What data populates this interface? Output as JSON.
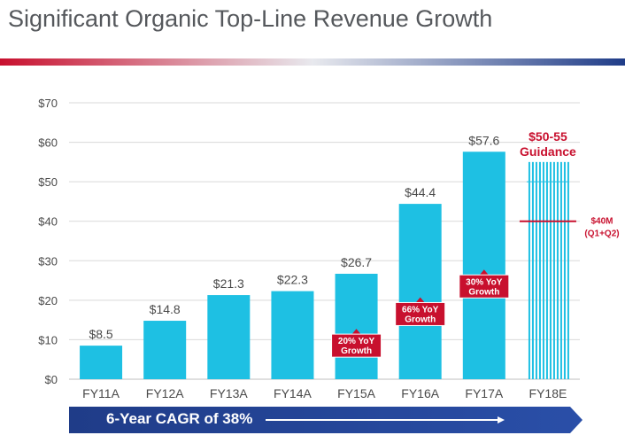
{
  "title": "Significant Organic Top-Line Revenue Growth",
  "colors": {
    "bar": "#1ec0e3",
    "accent": "#c8102e",
    "axis_text": "#4a4a4a",
    "title": "#55585c",
    "banner": "#1f3c88",
    "grid": "#d9d9d9"
  },
  "chart_data": {
    "type": "bar",
    "categories": [
      "FY11A",
      "FY12A",
      "FY13A",
      "FY14A",
      "FY15A",
      "FY16A",
      "FY17A",
      "FY18E"
    ],
    "values": [
      8.5,
      14.8,
      21.3,
      22.3,
      26.7,
      44.4,
      57.6,
      55
    ],
    "value_labels": [
      "$8.5",
      "$14.8",
      "$21.3",
      "$22.3",
      "$26.7",
      "$44.4",
      "$57.6",
      ""
    ],
    "ylim": [
      0,
      70
    ],
    "yticks": [
      0,
      10,
      20,
      30,
      40,
      50,
      60,
      70
    ],
    "ytick_labels": [
      "$0",
      "$10",
      "$20",
      "$30",
      "$40",
      "$50",
      "$60",
      "$70"
    ],
    "grid": true,
    "growth_callouts": [
      {
        "category": "FY15A",
        "lines": [
          "20% YoY",
          "Growth"
        ],
        "value": 8.5
      },
      {
        "category": "FY16A",
        "lines": [
          "66% YoY",
          "Growth"
        ],
        "value": 16.5
      },
      {
        "category": "FY17A",
        "lines": [
          "30% YoY",
          "Growth"
        ],
        "value": 23.5
      }
    ],
    "guidance": {
      "category": "FY18E",
      "range": [
        50,
        55
      ],
      "lines": [
        "$50-55",
        "Guidance"
      ],
      "marker_value": 40,
      "marker_lines": [
        "$40M",
        "(Q1+Q2)"
      ]
    }
  },
  "cagr": {
    "label": "6-Year CAGR of 38%"
  }
}
